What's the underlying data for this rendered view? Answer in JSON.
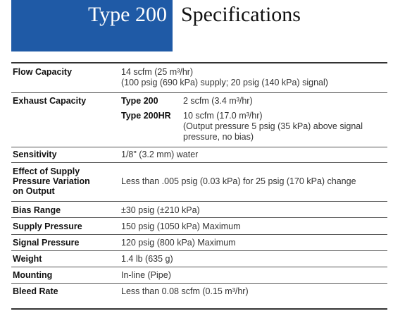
{
  "header": {
    "box_title": "Type 200",
    "title": "Specifications"
  },
  "rows": [
    {
      "label": [
        "Flow Capacity"
      ],
      "lines": [
        "14 scfm (25 m³/hr)",
        "(100 psig (690 kPa) supply; 20 psig (140 kPa) signal)"
      ]
    },
    {
      "label": [
        "Exhaust Capacity"
      ],
      "items": [
        {
          "name": "Type 200",
          "lines": [
            "2 scfm (3.4 m³/hr)"
          ]
        },
        {
          "name": "Type 200HR",
          "lines": [
            "10 scfm (17.0 m³/hr)",
            "(Output pressure 5 psig (35 kPa) above signal",
            "pressure, no bias)"
          ]
        }
      ]
    },
    {
      "label": [
        "Sensitivity"
      ],
      "lines": [
        "1/8\" (3.2 mm) water"
      ]
    },
    {
      "label": [
        "Effect of Supply",
        "Pressure Variation",
        "on Output"
      ],
      "lines": [
        "Less than .005 psig (0.03 kPa) for 25 psig (170 kPa) change"
      ]
    },
    {
      "label": [
        "Bias Range"
      ],
      "lines": [
        "±30 psig (±210 kPa)"
      ]
    },
    {
      "label": [
        "Supply Pressure"
      ],
      "lines": [
        "150 psig (1050 kPa) Maximum"
      ]
    },
    {
      "label": [
        "Signal Pressure"
      ],
      "lines": [
        "120 psig (800 kPa) Maximum"
      ]
    },
    {
      "label": [
        "Weight"
      ],
      "lines": [
        "1.4 lb (635 g)"
      ]
    },
    {
      "label": [
        "Mounting"
      ],
      "lines": [
        "In-line (Pipe)"
      ]
    },
    {
      "label": [
        "Bleed Rate"
      ],
      "lines": [
        "Less than 0.08 scfm (0.15 m³/hr)"
      ]
    }
  ]
}
